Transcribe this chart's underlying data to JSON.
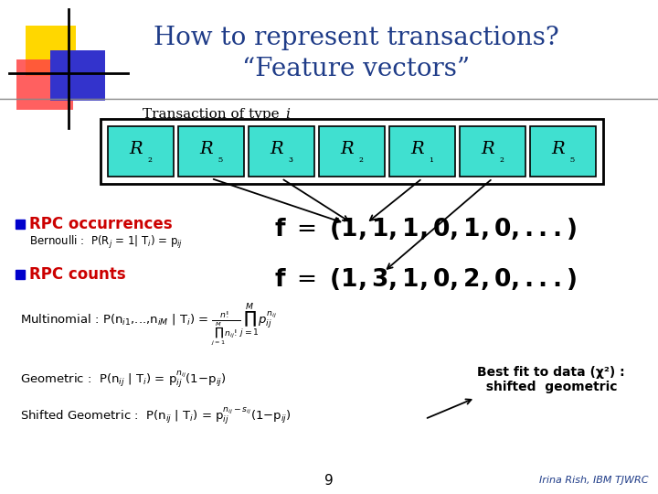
{
  "title_line1": "How to represent transactions?",
  "title_line2": "“Feature vectors”",
  "title_color": "#1F3C88",
  "bg_color": "#FFFFFF",
  "rpc_boxes": [
    "R₂",
    "R₅",
    "R₃",
    "R₂",
    "R₁",
    "R₂",
    "R₅"
  ],
  "box_fill": "#40E0D0",
  "box_edge": "#000000",
  "rpc_occ_label": "RPC occurrences",
  "rpc_cnt_label": "RPC counts",
  "rpc_label_color": "#CC0000",
  "bullet_color": "#0000CC",
  "footer_num": "9",
  "footer_author": "Irina Rish, IBM TJWRC",
  "footer_author_color": "#1F3C88"
}
